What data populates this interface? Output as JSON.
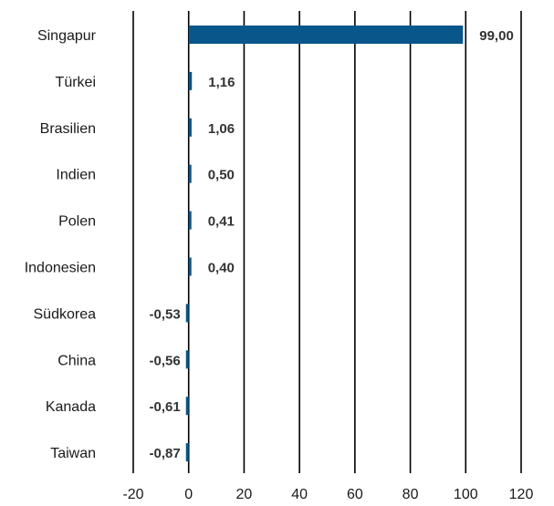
{
  "chart_data": {
    "type": "bar",
    "orientation": "horizontal",
    "categories": [
      "Singapur",
      "Türkei",
      "Brasilien",
      "Indien",
      "Polen",
      "Indonesien",
      "Südkorea",
      "China",
      "Kanada",
      "Taiwan"
    ],
    "values": [
      99.0,
      1.16,
      1.06,
      0.5,
      0.41,
      0.4,
      -0.53,
      -0.56,
      -0.61,
      -0.87
    ],
    "value_labels": [
      "99,00",
      "1,16",
      "1,06",
      "0,50",
      "0,41",
      "0,40",
      "-0,53",
      "-0,56",
      "-0,61",
      "-0,87"
    ],
    "xlim": [
      -20,
      120
    ],
    "xticks": [
      -20,
      0,
      20,
      40,
      60,
      80,
      100,
      120
    ],
    "xtick_labels": [
      "-20",
      "0",
      "20",
      "40",
      "60",
      "80",
      "100",
      "120"
    ],
    "grid": "vertical",
    "bar_color": "#08568a",
    "title": "",
    "xlabel": "",
    "ylabel": ""
  }
}
